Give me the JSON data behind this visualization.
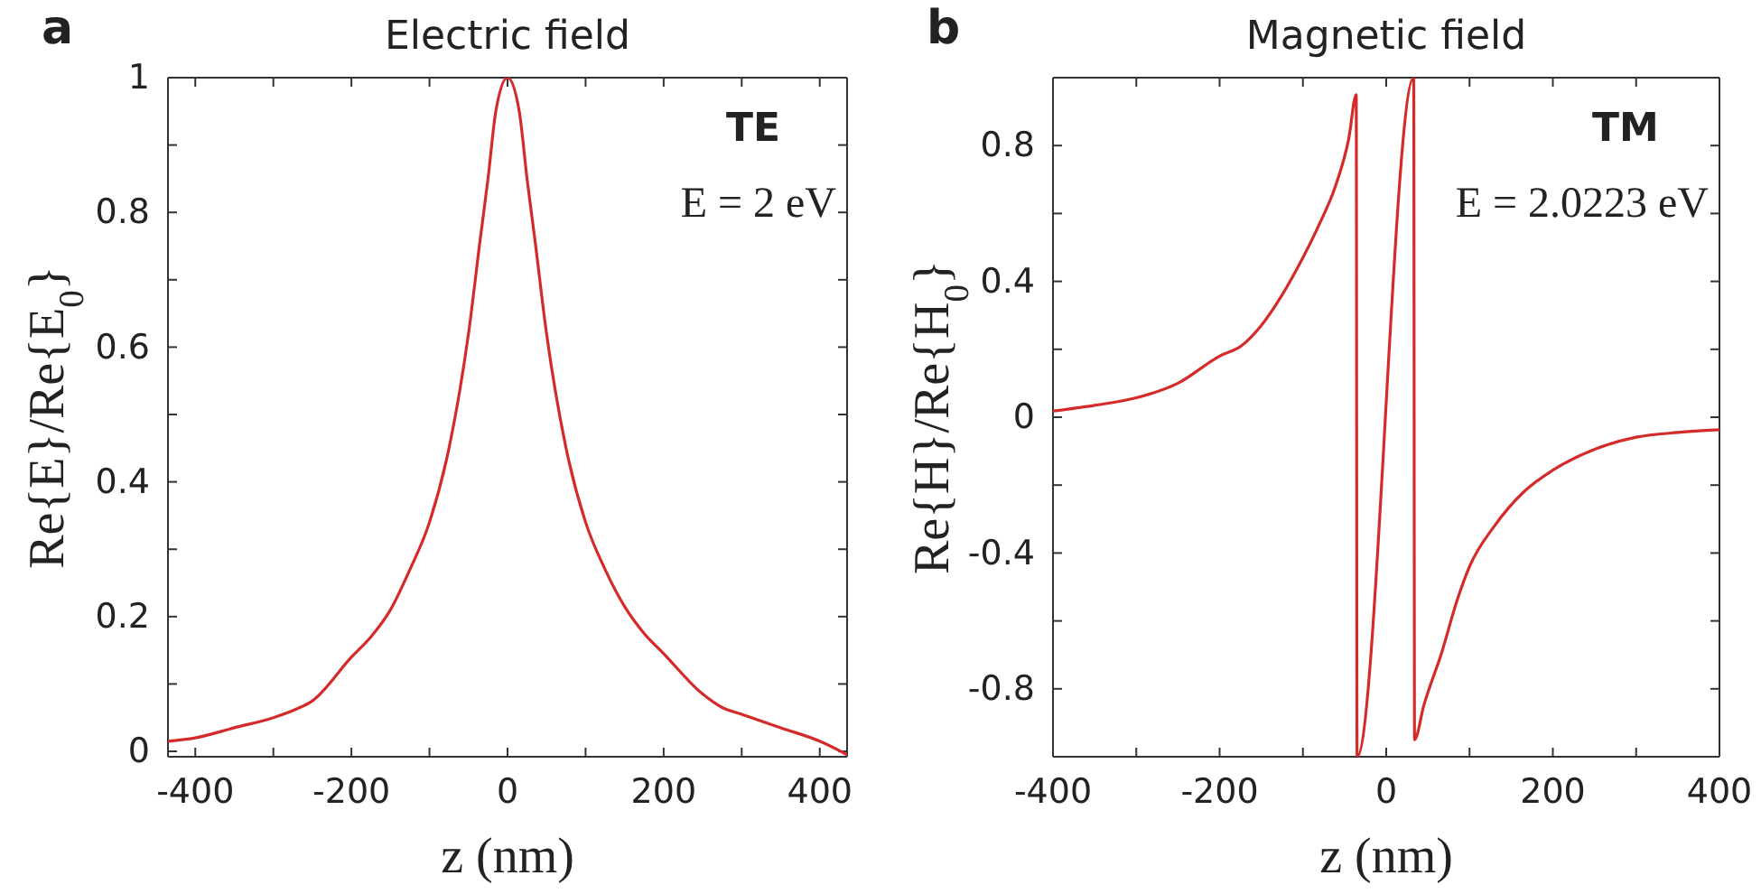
{
  "chart_data": [
    {
      "type": "line",
      "title": "Electric field",
      "xlabel": "z (nm)",
      "ylabel": "Re{E}/Re{E$_{0}$}",
      "annotations": [
        "a",
        "TE",
        "E = 2 eV"
      ],
      "xlim": [
        -435,
        435
      ],
      "xticks": [
        -400,
        {
          "value": -300,
          "label": null
        },
        -200,
        {
          "value": -100,
          "label": null
        },
        0,
        {
          "value": 100,
          "label": null
        },
        200,
        {
          "value": 300,
          "label": null
        },
        400
      ],
      "ylim": [
        -0.008,
        1
      ],
      "yticks": [
        0,
        {
          "value": 0.1,
          "label": null
        },
        0.2,
        {
          "value": 0.3,
          "label": null
        },
        0.4,
        {
          "value": 0.5,
          "label": null
        },
        0.6,
        {
          "value": 0.7,
          "label": null
        },
        0.8,
        {
          "value": 0.9,
          "label": null
        },
        1
      ],
      "series": [
        {
          "color": "#d42a2a",
          "x": [
            -435,
            -400,
            -350,
            -300,
            -270,
            -250,
            -200,
            -175,
            -150,
            -125,
            -100,
            -75,
            -50,
            -35,
            -25,
            -15,
            0,
            15,
            25,
            35,
            50,
            75,
            100,
            125,
            150,
            175,
            200,
            250,
            275,
            300,
            350,
            400,
            435
          ],
          "values": [
            0.015,
            0.02,
            0.035,
            0.05,
            0.063,
            0.075,
            0.14,
            0.17,
            0.21,
            0.27,
            0.34,
            0.45,
            0.62,
            0.76,
            0.85,
            0.95,
            1.0,
            0.95,
            0.85,
            0.76,
            0.62,
            0.45,
            0.34,
            0.27,
            0.215,
            0.175,
            0.145,
            0.085,
            0.065,
            0.055,
            0.035,
            0.015,
            -0.005
          ]
        }
      ]
    },
    {
      "type": "line",
      "title": "Magnetic field",
      "xlabel": "z (nm)",
      "ylabel": "Re{H}/Re{H$_{0}$}",
      "annotations": [
        "b",
        "TM",
        "E = 2.0223 eV"
      ],
      "xlim": [
        -400,
        400
      ],
      "xticks": [
        -400,
        {
          "value": -300,
          "label": null
        },
        -200,
        {
          "value": -100,
          "label": null
        },
        0,
        {
          "value": 100,
          "label": null
        },
        200,
        {
          "value": 300,
          "label": null
        },
        400
      ],
      "ylim": [
        -1,
        1
      ],
      "yticks": [
        -0.8,
        {
          "value": -0.6,
          "label": null
        },
        -0.4,
        {
          "value": -0.2,
          "label": null
        },
        0,
        {
          "value": 0.2,
          "label": null
        },
        0.4,
        {
          "value": 0.6,
          "label": null
        },
        0.8
      ],
      "series": [
        {
          "color": "#d42a2a",
          "x": [
            -400,
            -350,
            -300,
            -250,
            -200,
            -174,
            -150,
            -125,
            -100,
            -80,
            -61,
            -45,
            -36,
            -35,
            33,
            34,
            45,
            67,
            85,
            100,
            130,
            165,
            200,
            251,
            300,
            350,
            400
          ],
          "values": [
            0.018,
            0.035,
            0.057,
            0.1,
            0.18,
            0.21,
            0.27,
            0.36,
            0.47,
            0.57,
            0.68,
            0.82,
            0.95,
            -1.0,
            1.0,
            -0.95,
            -0.85,
            -0.69,
            -0.54,
            -0.44,
            -0.32,
            -0.22,
            -0.156,
            -0.094,
            -0.059,
            -0.045,
            -0.037
          ]
        }
      ]
    }
  ]
}
